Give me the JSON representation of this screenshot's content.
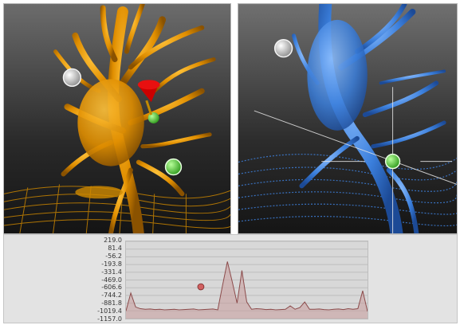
{
  "viewports": [
    {
      "name": "surface-render-orange",
      "color": "#f0a000"
    },
    {
      "name": "surface-render-blue",
      "color": "#3b7fdc"
    }
  ],
  "markers": {
    "white": "#d8d8d8",
    "green": "#55cc44",
    "red": "#cc0000"
  },
  "profile_plot": {
    "y_ticks": [
      "219.0",
      "81.4",
      "-56.2",
      "-193.8",
      "-331.4",
      "-469.0",
      "-606.6",
      "-744.2",
      "-881.8",
      "-1019.4",
      "-1157.0"
    ],
    "fill_color": "#c89c9c",
    "cursor_color": "#d06060"
  },
  "chart_data": {
    "type": "area",
    "ylim": [
      -1157.0,
      219.0
    ],
    "x": [
      0,
      2,
      4,
      6,
      8,
      10,
      12,
      14,
      16,
      18,
      20,
      22,
      24,
      26,
      28,
      30,
      32,
      34,
      36,
      38,
      40,
      42,
      44,
      46,
      48,
      50,
      52,
      54,
      56,
      58,
      60,
      62,
      64,
      66,
      68,
      70,
      72,
      74,
      76,
      78,
      80,
      82,
      84,
      86,
      88,
      90,
      92,
      94,
      96,
      98,
      100
    ],
    "values": [
      -1020,
      -700,
      -950,
      -980,
      -990,
      -985,
      -995,
      -990,
      -1000,
      -995,
      -990,
      -1000,
      -995,
      -990,
      -985,
      -1000,
      -995,
      -990,
      -985,
      -1000,
      -560,
      -140,
      -500,
      -880,
      -300,
      -860,
      -990,
      -980,
      -985,
      -995,
      -990,
      -1000,
      -995,
      -990,
      -930,
      -990,
      -960,
      -860,
      -990,
      -990,
      -985,
      -995,
      -1000,
      -990,
      -985,
      -995,
      -980,
      -990,
      -980,
      -660,
      -1030
    ],
    "cursor": {
      "x": 31,
      "y": -590
    }
  }
}
